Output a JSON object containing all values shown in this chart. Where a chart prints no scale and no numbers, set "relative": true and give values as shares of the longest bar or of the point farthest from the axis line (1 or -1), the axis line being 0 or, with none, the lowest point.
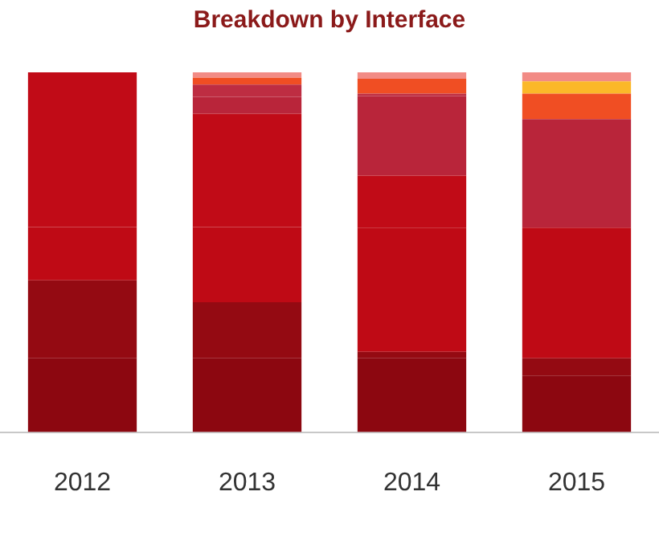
{
  "chart_data": {
    "type": "bar",
    "title": "Breakdown by Interface",
    "categories": [
      "2012",
      "2013",
      "2014",
      "2015"
    ],
    "stacked": true,
    "relative": true,
    "series": [
      {
        "color": "#8c0710",
        "values": [
          0.205,
          0.205,
          0.205,
          0.157
        ]
      },
      {
        "color": "#940a12",
        "values": [
          0.217,
          0.156,
          0.018,
          0.048
        ]
      },
      {
        "color": "#bf0a15",
        "values": [
          0.148,
          0.209,
          0.345,
          0.363
        ]
      },
      {
        "color": "#c10b17",
        "values": [
          0.43,
          0.315,
          0.145,
          0
        ]
      },
      {
        "color": "#b9253a",
        "values": [
          0,
          0.047,
          0.221,
          0.302
        ]
      },
      {
        "color": "#be2d42",
        "values": [
          0,
          0.034,
          0.007,
          0
        ]
      },
      {
        "color": "#f04e23",
        "values": [
          0,
          0.019,
          0.041,
          0.071
        ]
      },
      {
        "color": "#fbb829",
        "values": [
          0,
          0,
          0,
          0.034
        ]
      },
      {
        "color": "#f28b85",
        "values": [
          0,
          0.015,
          0.018,
          0.025
        ]
      }
    ]
  }
}
